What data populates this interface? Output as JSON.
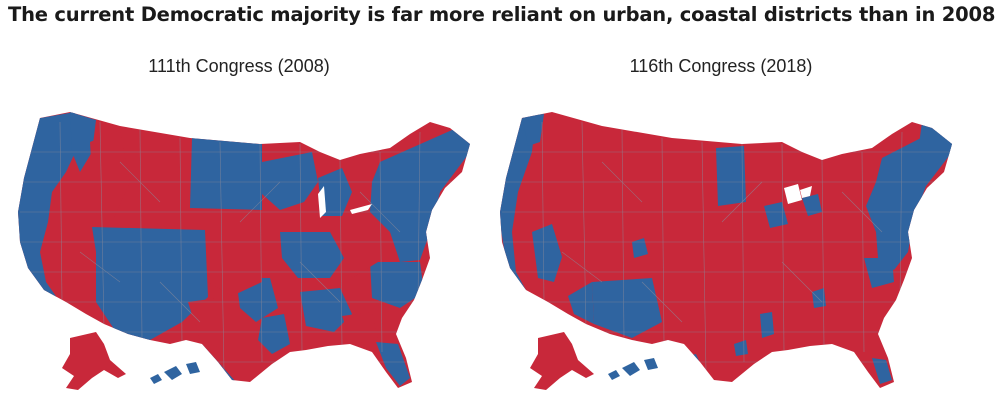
{
  "headline": "The current Democratic majority is far more reliant on urban, coastal districts than in 2008",
  "colors": {
    "democrat": "#2f64a0",
    "republican": "#c8283a",
    "border": "#8a8a9a",
    "background": "#ffffff"
  },
  "maps": [
    {
      "title": "111th Congress (2008)"
    },
    {
      "title": "116th Congress (2018)"
    }
  ]
}
